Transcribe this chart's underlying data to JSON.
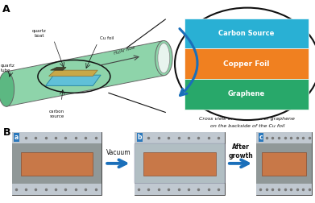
{
  "panel_A_label": "A",
  "panel_B_label": "B",
  "tube_color": "#8ed4aa",
  "tube_dark": "#5cb882",
  "carbon_source_color": "#29b0d4",
  "copper_foil_color": "#f08020",
  "graphene_color": "#28a86a",
  "arrow_color": "#1a6fba",
  "layer_labels": [
    "Carbon Source",
    "Copper Foil",
    "Graphene"
  ],
  "cross_view_text_1": "Cross view of the growth of graphene",
  "cross_view_text_2": "on the backside of the Cu foil",
  "h2ar_label": "H₂/Ar flow",
  "quartz_tube_label": "quartz\ntube",
  "quartz_boat_label": "quartz\nboat",
  "cu_foil_label": "Cu foil",
  "carbon_source_label": "carbon\nsource",
  "vacuum_label": "Vacuum",
  "after_growth_label": "After\ngrowth",
  "sub_labels": [
    "a",
    "b",
    "c"
  ],
  "bg_color": "#ffffff",
  "photo_bg_gray": "#a8b0b8",
  "photo_light_gray": "#c0c8d0",
  "copper_rect_color": "#c87848",
  "copper_rect_color2": "#c88050",
  "label_color": "#111111",
  "oval_color": "#111111"
}
